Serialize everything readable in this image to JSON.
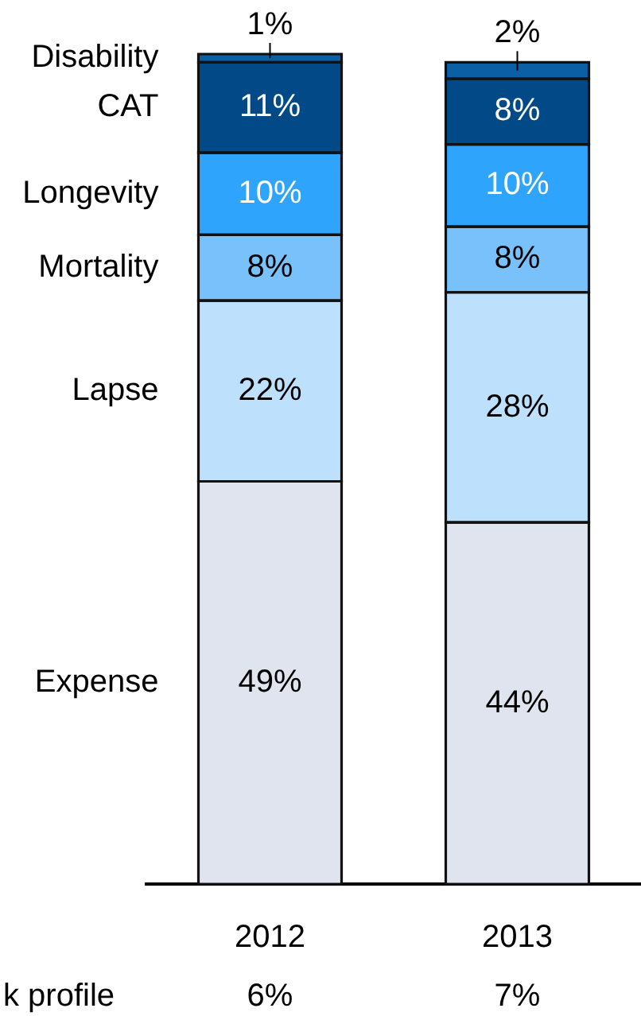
{
  "chart_data": {
    "type": "bar",
    "stacked": true,
    "categories": [
      "2012",
      "2013"
    ],
    "series": [
      {
        "name": "Expense",
        "color": "#dfe4ee",
        "values": [
          49,
          44
        ],
        "value_labels": [
          "49%",
          "44%"
        ]
      },
      {
        "name": "Lapse",
        "color": "#bde0fc",
        "values": [
          22,
          28
        ],
        "value_labels": [
          "22%",
          "28%"
        ]
      },
      {
        "name": "Mortality",
        "color": "#78c1fb",
        "values": [
          8,
          8
        ],
        "value_labels": [
          "8%",
          "8%"
        ]
      },
      {
        "name": "Longevity",
        "color": "#2fa4fc",
        "values": [
          10,
          10
        ],
        "value_labels": [
          "10%",
          "10%"
        ]
      },
      {
        "name": "CAT",
        "color": "#014a87",
        "values": [
          11,
          8
        ],
        "value_labels": [
          "11%",
          "8%"
        ]
      },
      {
        "name": "Disability",
        "color": "#0a5fa5",
        "values": [
          1,
          2
        ],
        "value_labels": [
          "1%",
          "2%"
        ]
      }
    ],
    "legend": "left",
    "grid": false,
    "annotations": [
      "k profile",
      "6%",
      "7%"
    ]
  }
}
